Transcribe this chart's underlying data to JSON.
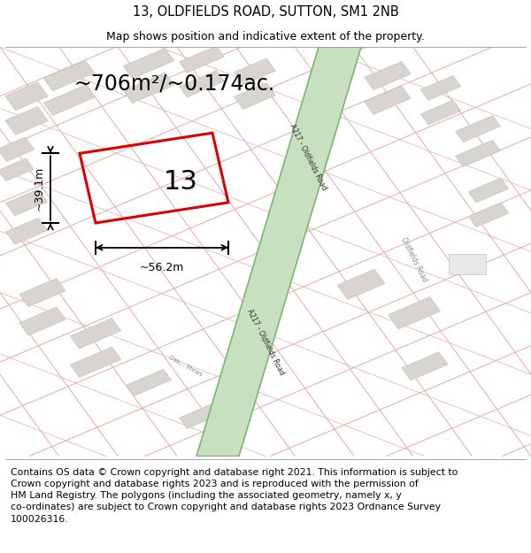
{
  "title": "13, OLDFIELDS ROAD, SUTTON, SM1 2NB",
  "subtitle": "Map shows position and indicative extent of the property.",
  "footer": "Contains OS data © Crown copyright and database right 2021. This information is subject to\nCrown copyright and database rights 2023 and is reproduced with the permission of\nHM Land Registry. The polygons (including the associated geometry, namely x, y\nco-ordinates) are subject to Crown copyright and database rights 2023 Ordnance Survey\n100026316.",
  "area_label": "~706m²/~0.174ac.",
  "width_label": "~56.2m",
  "height_label": "~39.1m",
  "plot_number": "13",
  "map_bg": "#f2eeea",
  "road_green_fill": "#c8dfc0",
  "road_green_stroke": "#78b870",
  "building_fill": "#d8d4d0",
  "building_stroke": "#c8c4c0",
  "plot_stroke": "#dd0000",
  "street_line_color": "#e8a8a8",
  "title_fontsize": 10.5,
  "subtitle_fontsize": 9,
  "footer_fontsize": 7.8,
  "area_fontsize": 17,
  "dim_fontsize": 9,
  "plot_num_fontsize": 22
}
